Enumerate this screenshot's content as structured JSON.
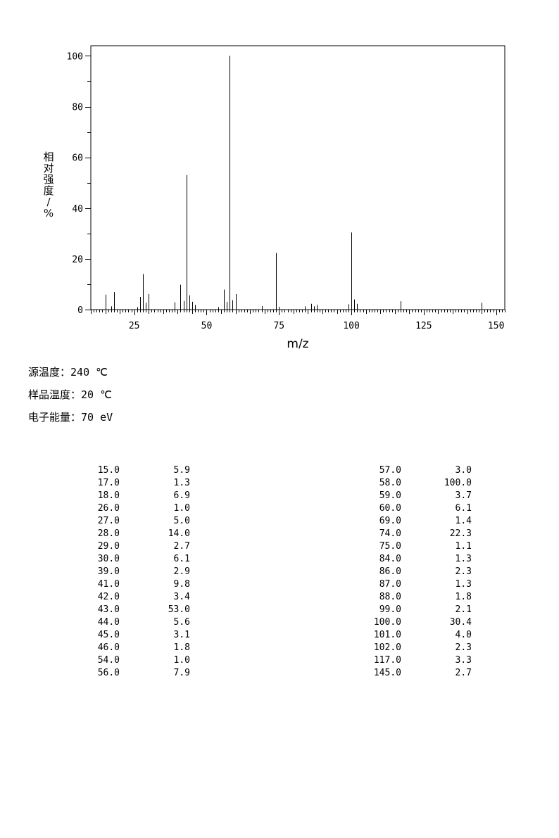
{
  "chart_data": {
    "type": "bar",
    "xlabel": "m/z",
    "ylabel": "相对强度/%",
    "xlim": [
      10,
      153
    ],
    "ylim": [
      0,
      104
    ],
    "xticks": [
      25,
      50,
      75,
      100,
      125,
      150
    ],
    "yticks": [
      0,
      20,
      40,
      60,
      80,
      100
    ],
    "x": [
      15,
      17,
      18,
      26,
      27,
      28,
      29,
      30,
      39,
      41,
      42,
      43,
      44,
      45,
      46,
      54,
      56,
      57,
      58,
      59,
      60,
      69,
      74,
      75,
      84,
      86,
      87,
      88,
      99,
      100,
      101,
      102,
      117,
      145
    ],
    "values": [
      5.9,
      1.3,
      6.9,
      1.0,
      5.0,
      14.0,
      2.7,
      6.1,
      2.9,
      9.8,
      3.4,
      53.0,
      5.6,
      3.1,
      1.8,
      1.0,
      7.9,
      3.0,
      100.0,
      3.7,
      6.1,
      1.4,
      22.3,
      1.1,
      1.3,
      2.3,
      1.3,
      1.8,
      2.1,
      30.4,
      4.0,
      2.3,
      3.3,
      2.7
    ]
  },
  "conditions": [
    {
      "label": "源温度：",
      "value": "240 ℃"
    },
    {
      "label": "样品温度：",
      "value": "20 ℃"
    },
    {
      "label": "电子能量：",
      "value": "70 eV"
    }
  ],
  "peak_table": {
    "left": [
      [
        "15.0",
        "5.9"
      ],
      [
        "17.0",
        "1.3"
      ],
      [
        "18.0",
        "6.9"
      ],
      [
        "26.0",
        "1.0"
      ],
      [
        "27.0",
        "5.0"
      ],
      [
        "28.0",
        "14.0"
      ],
      [
        "29.0",
        "2.7"
      ],
      [
        "30.0",
        "6.1"
      ],
      [
        "39.0",
        "2.9"
      ],
      [
        "41.0",
        "9.8"
      ],
      [
        "42.0",
        "3.4"
      ],
      [
        "43.0",
        "53.0"
      ],
      [
        "44.0",
        "5.6"
      ],
      [
        "45.0",
        "3.1"
      ],
      [
        "46.0",
        "1.8"
      ],
      [
        "54.0",
        "1.0"
      ],
      [
        "56.0",
        "7.9"
      ]
    ],
    "right": [
      [
        "57.0",
        "3.0"
      ],
      [
        "58.0",
        "100.0"
      ],
      [
        "59.0",
        "3.7"
      ],
      [
        "60.0",
        "6.1"
      ],
      [
        "69.0",
        "1.4"
      ],
      [
        "74.0",
        "22.3"
      ],
      [
        "75.0",
        "1.1"
      ],
      [
        "84.0",
        "1.3"
      ],
      [
        "86.0",
        "2.3"
      ],
      [
        "87.0",
        "1.3"
      ],
      [
        "88.0",
        "1.8"
      ],
      [
        "99.0",
        "2.1"
      ],
      [
        "100.0",
        "30.4"
      ],
      [
        "101.0",
        "4.0"
      ],
      [
        "102.0",
        "2.3"
      ],
      [
        "117.0",
        "3.3"
      ],
      [
        "145.0",
        "2.7"
      ]
    ]
  }
}
